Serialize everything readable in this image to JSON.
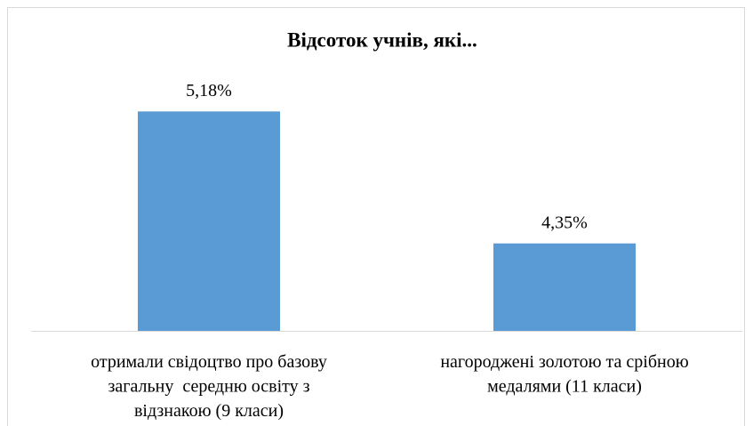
{
  "chart_data": {
    "type": "bar",
    "title": "Відсоток учнів, які...",
    "categories": [
      "отримали свідоцтво про базову\nзагальну  середню освіту з\nвідзнакою (9 класи)",
      "нагороджені золотою та срібною\nмедалями (11 класи)"
    ],
    "values": [
      5.18,
      4.35
    ],
    "value_labels": [
      "5,18%",
      "4,35%"
    ],
    "color": "#5b9bd5",
    "ylim": [
      3.8,
      5.4
    ]
  }
}
